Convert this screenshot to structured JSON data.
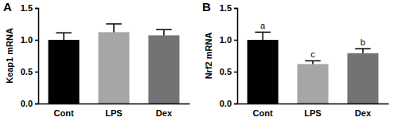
{
  "chart_data": [
    {
      "type": "bar",
      "title": "A",
      "y_label": "Keap1 mRNA",
      "categories": [
        "Cont",
        "LPS",
        "Dex"
      ],
      "values": [
        1.0,
        1.12,
        1.07
      ],
      "errors": [
        0.11,
        0.13,
        0.09
      ],
      "colors": [
        "#000000",
        "#a6a6a6",
        "#737373"
      ],
      "ylim": [
        0,
        1.5
      ],
      "yticks": [
        {
          "value": 0,
          "label": "0.0"
        },
        {
          "value": 0.5,
          "label": "0.5"
        },
        {
          "value": 1.0,
          "label": "1.0"
        },
        {
          "value": 1.5,
          "label": "1.5"
        }
      ]
    },
    {
      "type": "bar",
      "title": "B",
      "y_label": "Nrf2 mRNA",
      "categories": [
        "Cont",
        "LPS",
        "Dex"
      ],
      "values": [
        1.0,
        0.62,
        0.79
      ],
      "errors": [
        0.12,
        0.05,
        0.07
      ],
      "annotations": [
        "a",
        "c",
        "b"
      ],
      "colors": [
        "#000000",
        "#a6a6a6",
        "#737373"
      ],
      "ylim": [
        0,
        1.5
      ],
      "yticks": [
        {
          "value": 0,
          "label": "0.0"
        },
        {
          "value": 0.5,
          "label": "0.5"
        },
        {
          "value": 1.0,
          "label": "1.0"
        },
        {
          "value": 1.5,
          "label": "1.5"
        }
      ]
    }
  ]
}
